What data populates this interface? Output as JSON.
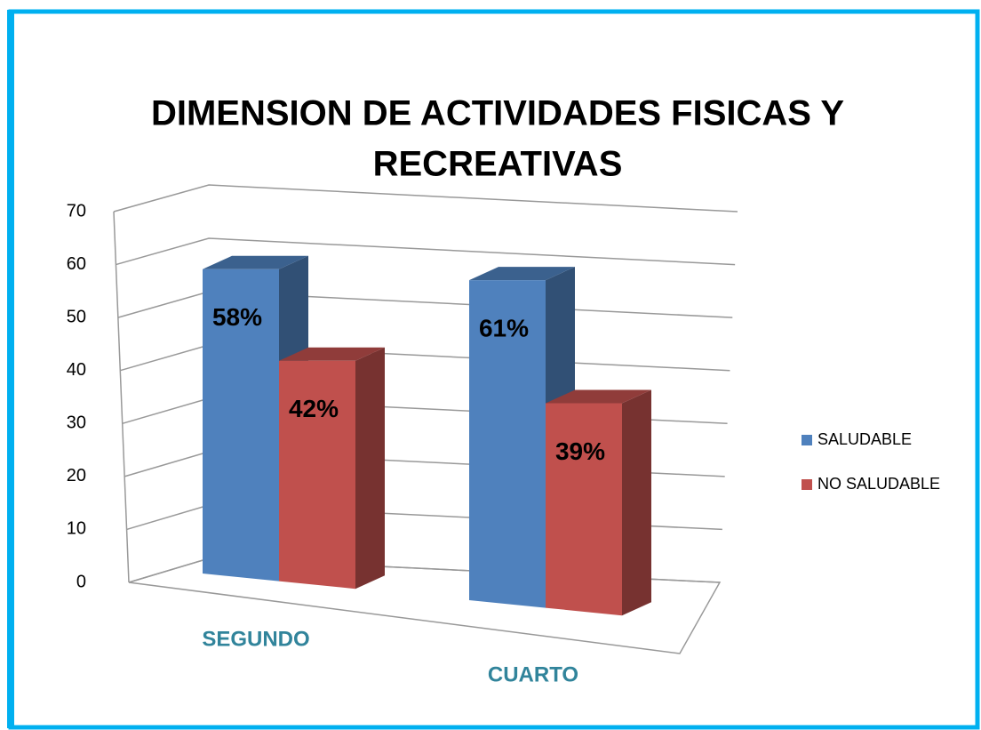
{
  "chart_data": {
    "type": "bar",
    "title": [
      "DIMENSION DE ACTIVIDADES FISICAS Y",
      "RECREATIVAS"
    ],
    "categories": [
      "SEGUNDO",
      "CUARTO"
    ],
    "series": [
      {
        "name": "SALUDABLE",
        "color": "#4f81bd",
        "values": [
          58,
          61
        ],
        "value_labels": [
          "58%",
          "61%"
        ]
      },
      {
        "name": "NO SALUDABLE",
        "color": "#c0504d",
        "values": [
          42,
          39
        ],
        "value_labels": [
          "42%",
          "39%"
        ]
      }
    ],
    "ylim": [
      0,
      70
    ],
    "yticks": [
      0,
      10,
      20,
      30,
      40,
      50,
      60,
      70
    ],
    "grid": true,
    "legend": "right"
  }
}
